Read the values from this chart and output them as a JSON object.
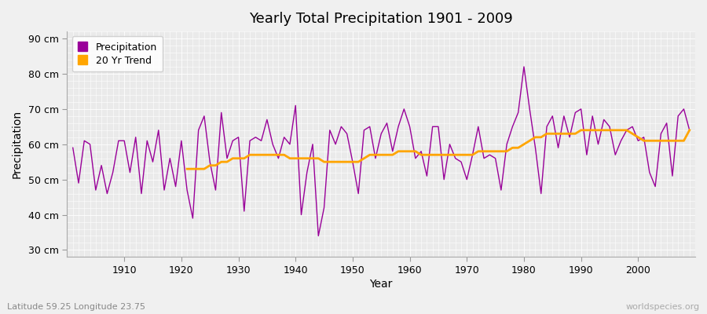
{
  "title": "Yearly Total Precipitation 1901 - 2009",
  "xlabel": "Year",
  "ylabel": "Precipitation",
  "subtitle": "Latitude 59.25 Longitude 23.75",
  "watermark": "worldspecies.org",
  "years": [
    1901,
    1902,
    1903,
    1904,
    1905,
    1906,
    1907,
    1908,
    1909,
    1910,
    1911,
    1912,
    1913,
    1914,
    1915,
    1916,
    1917,
    1918,
    1919,
    1920,
    1921,
    1922,
    1923,
    1924,
    1925,
    1926,
    1927,
    1928,
    1929,
    1930,
    1931,
    1932,
    1933,
    1934,
    1935,
    1936,
    1937,
    1938,
    1939,
    1940,
    1941,
    1942,
    1943,
    1944,
    1945,
    1946,
    1947,
    1948,
    1949,
    1950,
    1951,
    1952,
    1953,
    1954,
    1955,
    1956,
    1957,
    1958,
    1959,
    1960,
    1961,
    1962,
    1963,
    1964,
    1965,
    1966,
    1967,
    1968,
    1969,
    1970,
    1971,
    1972,
    1973,
    1974,
    1975,
    1976,
    1977,
    1978,
    1979,
    1980,
    1981,
    1982,
    1983,
    1984,
    1985,
    1986,
    1987,
    1988,
    1989,
    1990,
    1991,
    1992,
    1993,
    1994,
    1995,
    1996,
    1997,
    1998,
    1999,
    2000,
    2001,
    2002,
    2003,
    2004,
    2005,
    2006,
    2007,
    2008,
    2009
  ],
  "precipitation": [
    59,
    49,
    61,
    60,
    47,
    54,
    46,
    52,
    61,
    61,
    52,
    62,
    46,
    61,
    55,
    64,
    47,
    56,
    48,
    61,
    47,
    39,
    64,
    68,
    55,
    47,
    69,
    56,
    61,
    62,
    41,
    61,
    62,
    61,
    67,
    60,
    56,
    62,
    60,
    71,
    40,
    52,
    60,
    34,
    42,
    64,
    60,
    65,
    63,
    55,
    46,
    64,
    65,
    56,
    63,
    66,
    58,
    65,
    70,
    65,
    56,
    58,
    51,
    65,
    65,
    50,
    60,
    56,
    55,
    50,
    57,
    65,
    56,
    57,
    56,
    47,
    60,
    65,
    69,
    82,
    70,
    59,
    46,
    65,
    68,
    59,
    68,
    62,
    69,
    70,
    57,
    68,
    60,
    67,
    65,
    57,
    61,
    64,
    65,
    61,
    62,
    52,
    48,
    63,
    66,
    51,
    68,
    70,
    64
  ],
  "trend_years": [
    1921,
    1922,
    1923,
    1924,
    1925,
    1926,
    1927,
    1928,
    1929,
    1930,
    1931,
    1932,
    1933,
    1934,
    1935,
    1936,
    1937,
    1938,
    1939,
    1940,
    1941,
    1942,
    1943,
    1944,
    1945,
    1946,
    1947,
    1948,
    1949,
    1950,
    1951,
    1952,
    1953,
    1954,
    1955,
    1956,
    1957,
    1958,
    1959,
    1960,
    1961,
    1962,
    1963,
    1964,
    1965,
    1966,
    1967,
    1968,
    1969,
    1970,
    1971,
    1972,
    1973,
    1974,
    1975,
    1976,
    1977,
    1978,
    1979,
    1980,
    1981,
    1982,
    1983,
    1984,
    1985,
    1986,
    1987,
    1988,
    1989,
    1990,
    1991,
    1992,
    1993,
    1994,
    1995,
    1996,
    1997,
    1998,
    1999,
    2000,
    2001,
    2002,
    2003,
    2004,
    2005,
    2006,
    2007,
    2008,
    2009
  ],
  "trend": [
    53,
    53,
    53,
    53,
    54,
    54,
    55,
    55,
    56,
    56,
    56,
    57,
    57,
    57,
    57,
    57,
    57,
    57,
    56,
    56,
    56,
    56,
    56,
    56,
    55,
    55,
    55,
    55,
    55,
    55,
    55,
    56,
    57,
    57,
    57,
    57,
    57,
    58,
    58,
    58,
    58,
    57,
    57,
    57,
    57,
    57,
    57,
    57,
    57,
    57,
    57,
    58,
    58,
    58,
    58,
    58,
    58,
    59,
    59,
    60,
    61,
    62,
    62,
    63,
    63,
    63,
    63,
    63,
    63,
    64,
    64,
    64,
    64,
    64,
    64,
    64,
    64,
    64,
    63,
    62,
    61,
    61,
    61,
    61,
    61,
    61,
    61,
    61,
    64
  ],
  "precip_color": "#990099",
  "trend_color": "#FFA500",
  "bg_color": "#F0F0F0",
  "plot_bg_color": "#EAEAEA",
  "grid_color": "#FFFFFF",
  "ylim": [
    28,
    92
  ],
  "yticks": [
    30,
    40,
    50,
    60,
    70,
    80,
    90
  ],
  "ytick_labels": [
    "30 cm",
    "40 cm",
    "50 cm",
    "60 cm",
    "70 cm",
    "80 cm",
    "90 cm"
  ],
  "xlim": [
    1900,
    2010
  ],
  "xticks": [
    1910,
    1920,
    1930,
    1940,
    1950,
    1960,
    1970,
    1980,
    1990,
    2000
  ]
}
